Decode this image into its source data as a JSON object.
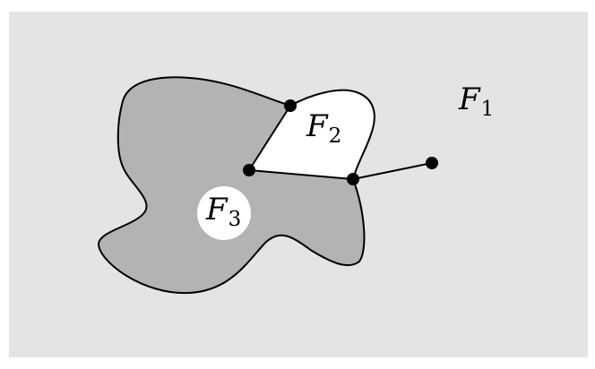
{
  "diagram": {
    "colors": {
      "outer_face": "#e4e4e4",
      "inner_face": "#b3b3b3",
      "white_face": "#ffffff",
      "edges": "#000000",
      "vertices": "#000000"
    },
    "faces": [
      {
        "id": "F1",
        "letter": "F",
        "subscript": "1"
      },
      {
        "id": "F2",
        "letter": "F",
        "subscript": "2"
      },
      {
        "id": "F3",
        "letter": "F",
        "subscript": "3"
      }
    ],
    "vertex_count": 4
  }
}
